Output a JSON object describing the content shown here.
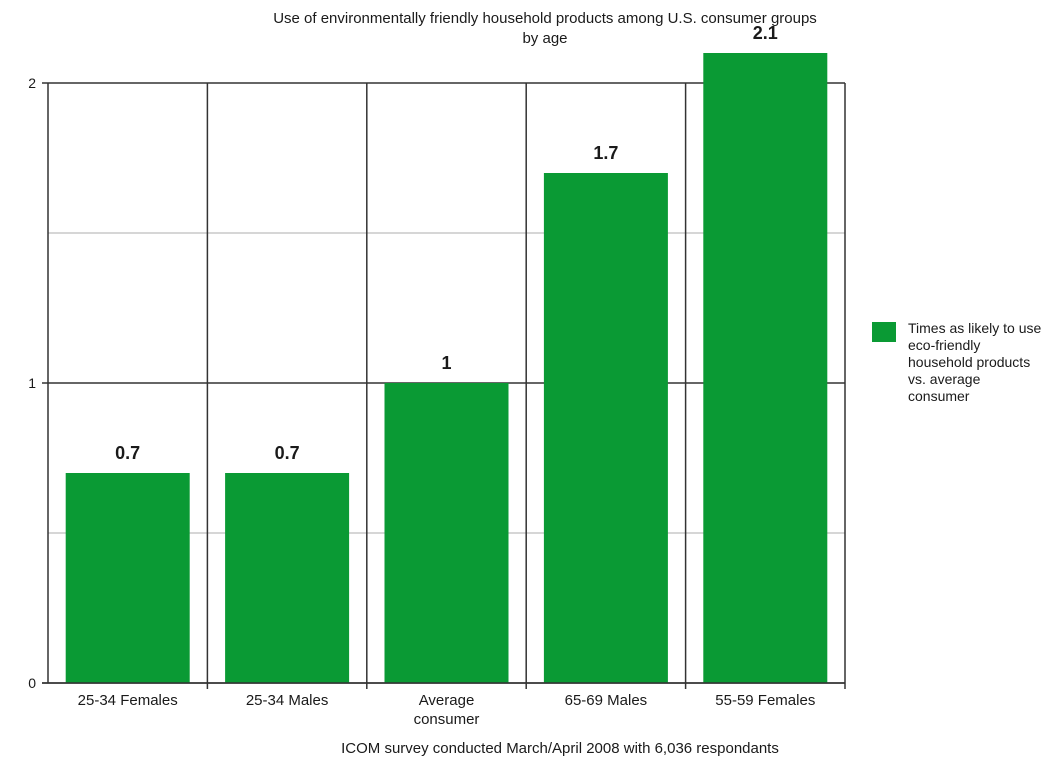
{
  "chart_data": {
    "type": "bar",
    "title": "Use of environmentally friendly household products among U.S. consumer groups",
    "subtitle": "by age",
    "categories": [
      "25-34 Females",
      "25-34 Males",
      "Average consumer",
      "65-69 Males",
      "55-59 Females"
    ],
    "series": [
      {
        "name": "Times as likely to use eco-friendly household products vs. average consumer",
        "values": [
          0.7,
          0.7,
          1,
          1.7,
          2.1
        ]
      }
    ],
    "data_labels": [
      "0.7",
      "0.7",
      "1",
      "1.7",
      "2.1"
    ],
    "yticks": [
      "0",
      "1",
      "2"
    ],
    "ylim": [
      0,
      2
    ],
    "xlabel": "",
    "ylabel": "",
    "grid": true,
    "legend_position": "right",
    "caption": "ICOM survey conducted March/April 2008 with 6,036 respondants",
    "colors": {
      "bar": "#0a9a34",
      "grid_major": "#333333",
      "grid_minor": "#c8c8c8",
      "axis": "#333333"
    }
  }
}
